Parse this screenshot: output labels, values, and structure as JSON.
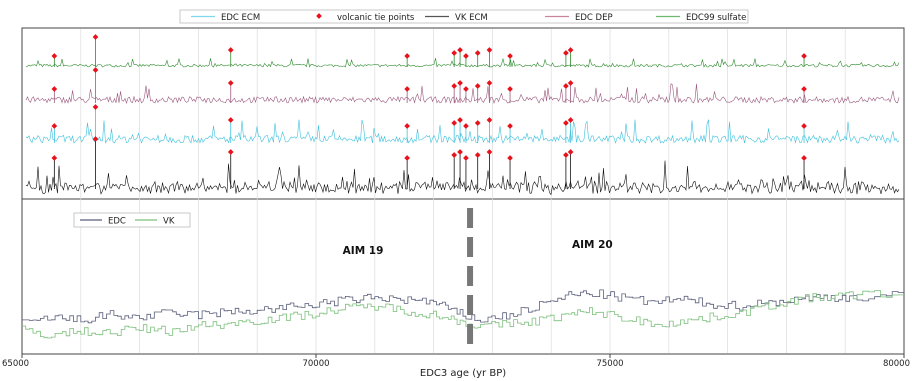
{
  "chart_data": [
    {
      "type": "line",
      "panel": "top",
      "legend": {
        "placement": "top",
        "entries": [
          {
            "label": "EDC ECM",
            "color": "#7fd4f0",
            "kind": "line"
          },
          {
            "label": "volcanic tie points",
            "color": "#e8121b",
            "kind": "marker"
          },
          {
            "label": "VK ECM",
            "color": "#555555",
            "kind": "line"
          },
          {
            "label": "EDC DEP",
            "color": "#c9839f",
            "kind": "line"
          },
          {
            "label": "EDC99 sulfate",
            "color": "#6fb86f",
            "kind": "line"
          }
        ]
      },
      "xlim": [
        65000,
        80000
      ],
      "series": [
        {
          "name": "EDC99 sulfate",
          "color": "#2e8b2e"
        },
        {
          "name": "EDC DEP",
          "color": "#9c5a7e"
        },
        {
          "name": "EDC ECM",
          "color": "#3fc1dd"
        },
        {
          "name": "VK ECM",
          "color": "#111111"
        }
      ],
      "tie_points_x": [
        65550,
        66250,
        68550,
        71550,
        72350,
        72450,
        72550,
        72750,
        72950,
        73300,
        74250,
        74330,
        78300
      ]
    },
    {
      "type": "line",
      "panel": "bottom",
      "legend": {
        "placement": "top-left",
        "entries": [
          {
            "label": "EDC",
            "color": "#5a5f7a"
          },
          {
            "label": "VK",
            "color": "#7cbf7c"
          }
        ]
      },
      "annotations": [
        {
          "text": "AIM 19",
          "x": 70800
        },
        {
          "text": "AIM 20",
          "x": 74700
        }
      ],
      "boundary_x": 72620,
      "xlim": [
        65000,
        80000
      ],
      "xticks": [
        65000,
        70000,
        75000,
        80000
      ],
      "xtick_labels": [
        "65000",
        "70000",
        "75000",
        "80000"
      ],
      "xlabel": "EDC3 age (yr BP)",
      "grid": true,
      "series": [
        {
          "name": "EDC",
          "color": "#5a5f7a",
          "points": [
            [
              65000,
              0.18
            ],
            [
              65500,
              0.25
            ],
            [
              66000,
              0.22
            ],
            [
              66500,
              0.28
            ],
            [
              67000,
              0.25
            ],
            [
              67500,
              0.3
            ],
            [
              68000,
              0.28
            ],
            [
              68500,
              0.31
            ],
            [
              69000,
              0.33
            ],
            [
              69500,
              0.36
            ],
            [
              70000,
              0.4
            ],
            [
              70500,
              0.44
            ],
            [
              71000,
              0.47
            ],
            [
              71500,
              0.45
            ],
            [
              72000,
              0.42
            ],
            [
              72400,
              0.3
            ],
            [
              72800,
              0.22
            ],
            [
              73300,
              0.28
            ],
            [
              73800,
              0.38
            ],
            [
              74300,
              0.5
            ],
            [
              74700,
              0.52
            ],
            [
              75200,
              0.47
            ],
            [
              75700,
              0.42
            ],
            [
              76200,
              0.45
            ],
            [
              76700,
              0.4
            ],
            [
              77200,
              0.38
            ],
            [
              77700,
              0.42
            ],
            [
              78200,
              0.45
            ],
            [
              78700,
              0.48
            ],
            [
              79200,
              0.47
            ],
            [
              80000,
              0.5
            ]
          ]
        },
        {
          "name": "VK",
          "color": "#7cbf7c",
          "points": [
            [
              65000,
              0.12
            ],
            [
              65500,
              0.05
            ],
            [
              66000,
              0.1
            ],
            [
              66500,
              0.08
            ],
            [
              67000,
              0.13
            ],
            [
              67500,
              0.1
            ],
            [
              68000,
              0.16
            ],
            [
              68500,
              0.18
            ],
            [
              69000,
              0.22
            ],
            [
              69500,
              0.25
            ],
            [
              70000,
              0.3
            ],
            [
              70500,
              0.35
            ],
            [
              71000,
              0.38
            ],
            [
              71500,
              0.33
            ],
            [
              72000,
              0.28
            ],
            [
              72400,
              0.22
            ],
            [
              72800,
              0.15
            ],
            [
              73300,
              0.18
            ],
            [
              73800,
              0.22
            ],
            [
              74300,
              0.28
            ],
            [
              74700,
              0.32
            ],
            [
              75200,
              0.25
            ],
            [
              75700,
              0.18
            ],
            [
              76200,
              0.2
            ],
            [
              76700,
              0.25
            ],
            [
              77200,
              0.3
            ],
            [
              77700,
              0.38
            ],
            [
              78200,
              0.45
            ],
            [
              78700,
              0.48
            ],
            [
              79200,
              0.5
            ],
            [
              80000,
              0.52
            ]
          ]
        }
      ]
    }
  ]
}
